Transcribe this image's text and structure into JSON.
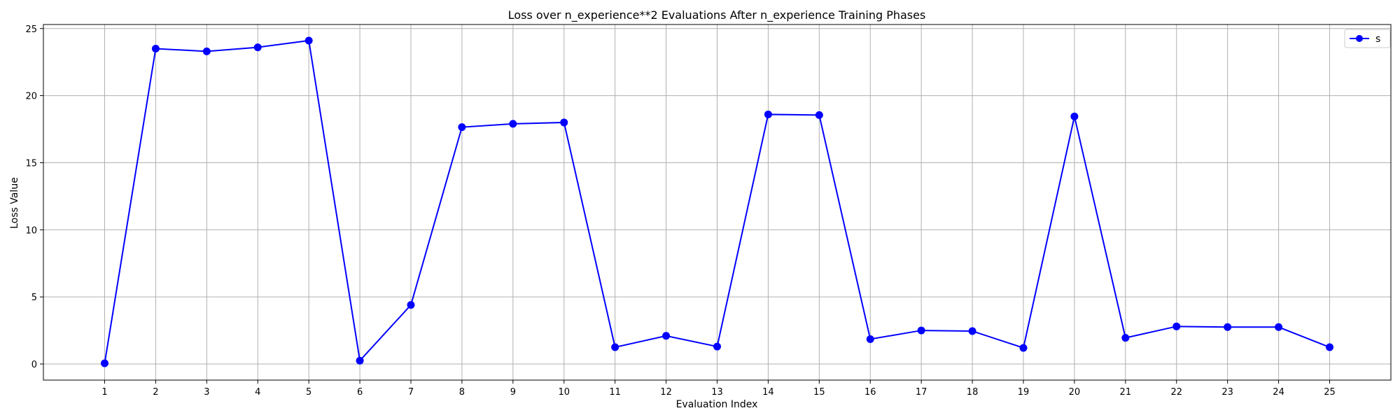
{
  "chart_data": {
    "type": "line",
    "title": "Loss over n_experience**2 Evaluations After n_experience Training Phases",
    "xlabel": "Evaluation Index",
    "ylabel": "Loss Value",
    "x": [
      1,
      2,
      3,
      4,
      5,
      6,
      7,
      8,
      9,
      10,
      11,
      12,
      13,
      14,
      15,
      16,
      17,
      18,
      19,
      20,
      21,
      22,
      23,
      24,
      25
    ],
    "xticks": [
      "1",
      "2",
      "3",
      "4",
      "5",
      "6",
      "7",
      "8",
      "9",
      "10",
      "11",
      "12",
      "13",
      "14",
      "15",
      "16",
      "17",
      "18",
      "19",
      "20",
      "21",
      "22",
      "23",
      "24",
      "25"
    ],
    "yticks": [
      "0",
      "5",
      "10",
      "15",
      "20",
      "25"
    ],
    "xlim": [
      -0.2,
      26.2
    ],
    "ylim": [
      -1.2,
      25.3
    ],
    "grid": true,
    "legend_position": "top-right",
    "series": [
      {
        "name": "s",
        "color": "#0000ff",
        "marker": "circle",
        "values": [
          0.05,
          23.5,
          23.3,
          23.6,
          24.1,
          0.25,
          4.4,
          17.65,
          17.9,
          18.0,
          1.25,
          2.1,
          1.3,
          18.6,
          18.55,
          1.85,
          2.5,
          2.45,
          1.2,
          18.45,
          1.95,
          2.8,
          2.75,
          2.75,
          1.25
        ]
      }
    ]
  }
}
